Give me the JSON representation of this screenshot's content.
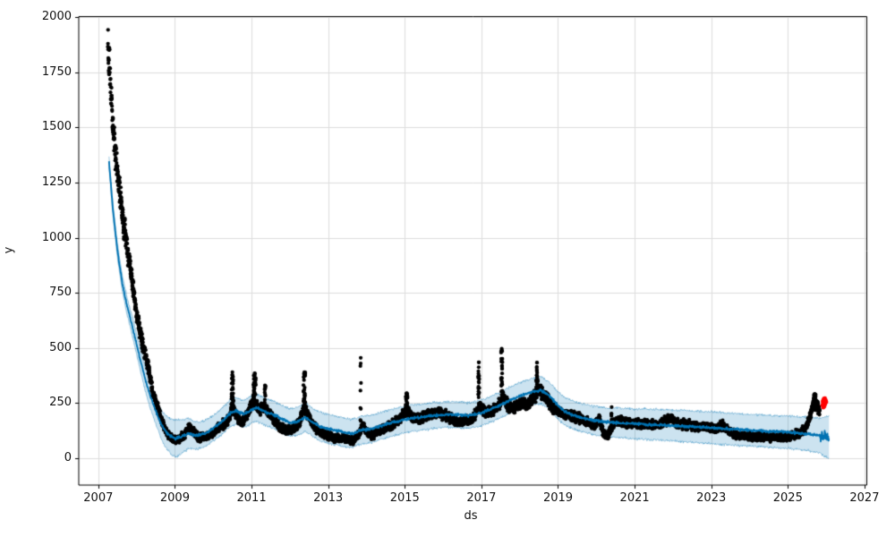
{
  "chart_data": {
    "type": "scatter",
    "title": "",
    "xlabel": "ds",
    "ylabel": "y",
    "xlim": [
      2006.49,
      2027.06
    ],
    "ylim": [
      -122,
      2003
    ],
    "xticks": [
      2007,
      2009,
      2011,
      2013,
      2015,
      2017,
      2019,
      2021,
      2023,
      2025,
      2027
    ],
    "yticks": [
      0,
      250,
      500,
      750,
      1000,
      1250,
      1500,
      1750,
      2000
    ],
    "grid": true,
    "legend": null,
    "colors": {
      "points": "#000000",
      "anomaly": "#ff0000",
      "line": "#0072B2",
      "band_fill": "rgba(0,114,178,0.2)",
      "band_edge": "rgba(0,114,178,0.35)",
      "grid": "#dddddd",
      "frame": "#000000",
      "tick_text": "#111111",
      "background": "#ffffff"
    },
    "series": [
      {
        "name": "observations",
        "style": "scatter",
        "color": "#000000"
      },
      {
        "name": "forecast yhat",
        "style": "line",
        "color": "#0072B2"
      },
      {
        "name": "uncertainty interval",
        "style": "band",
        "color": "rgba(0,114,178,0.2)"
      },
      {
        "name": "anomalies",
        "style": "scatter",
        "color": "#ff0000"
      }
    ],
    "obs_start": 2007.25,
    "history_end": 2025.83,
    "line_start": 2007.28,
    "forecast_end": 2026.08,
    "trend_anchors": [
      [
        2007.28,
        1345
      ],
      [
        2007.38,
        1130
      ],
      [
        2007.5,
        940
      ],
      [
        2007.62,
        800
      ],
      [
        2007.75,
        690
      ],
      [
        2007.9,
        590
      ],
      [
        2008.05,
        480
      ],
      [
        2008.2,
        375
      ],
      [
        2008.35,
        285
      ],
      [
        2008.5,
        215
      ],
      [
        2008.65,
        150
      ],
      [
        2008.8,
        112
      ],
      [
        2009.0,
        88
      ],
      [
        2009.15,
        95
      ],
      [
        2009.35,
        112
      ],
      [
        2009.55,
        103
      ],
      [
        2009.75,
        108
      ],
      [
        2010.0,
        135
      ],
      [
        2010.2,
        162
      ],
      [
        2010.45,
        205
      ],
      [
        2010.6,
        215
      ],
      [
        2010.8,
        200
      ],
      [
        2011.0,
        220
      ],
      [
        2011.15,
        228
      ],
      [
        2011.4,
        207
      ],
      [
        2011.6,
        196
      ],
      [
        2011.8,
        176
      ],
      [
        2012.0,
        162
      ],
      [
        2012.2,
        166
      ],
      [
        2012.4,
        186
      ],
      [
        2012.6,
        162
      ],
      [
        2012.8,
        142
      ],
      [
        2013.0,
        133
      ],
      [
        2013.2,
        127
      ],
      [
        2013.45,
        116
      ],
      [
        2013.65,
        112
      ],
      [
        2013.85,
        127
      ],
      [
        2014.05,
        130
      ],
      [
        2014.3,
        142
      ],
      [
        2014.6,
        158
      ],
      [
        2014.9,
        170
      ],
      [
        2015.15,
        181
      ],
      [
        2015.45,
        186
      ],
      [
        2015.75,
        193
      ],
      [
        2016.05,
        197
      ],
      [
        2016.35,
        198
      ],
      [
        2016.65,
        193
      ],
      [
        2016.9,
        200
      ],
      [
        2017.1,
        212
      ],
      [
        2017.35,
        230
      ],
      [
        2017.6,
        250
      ],
      [
        2017.85,
        272
      ],
      [
        2018.1,
        288
      ],
      [
        2018.35,
        302
      ],
      [
        2018.55,
        308
      ],
      [
        2018.75,
        288
      ],
      [
        2018.95,
        248
      ],
      [
        2019.15,
        215
      ],
      [
        2019.35,
        198
      ],
      [
        2019.6,
        185
      ],
      [
        2019.9,
        172
      ],
      [
        2020.2,
        165
      ],
      [
        2020.5,
        162
      ],
      [
        2020.8,
        158
      ],
      [
        2021.1,
        155
      ],
      [
        2021.5,
        152
      ],
      [
        2022.0,
        148
      ],
      [
        2022.5,
        143
      ],
      [
        2023.0,
        138
      ],
      [
        2023.5,
        132
      ],
      [
        2024.0,
        127
      ],
      [
        2024.5,
        122
      ],
      [
        2025.0,
        118
      ],
      [
        2025.4,
        112
      ],
      [
        2025.83,
        104
      ],
      [
        2025.9,
        98
      ],
      [
        2026.08,
        95
      ]
    ],
    "band_half_anchors": [
      [
        2007.28,
        25
      ],
      [
        2007.6,
        35
      ],
      [
        2008.0,
        48
      ],
      [
        2008.5,
        60
      ],
      [
        2009.0,
        85
      ],
      [
        2009.5,
        62
      ],
      [
        2010.0,
        58
      ],
      [
        2011.0,
        62
      ],
      [
        2012.0,
        62
      ],
      [
        2013.0,
        66
      ],
      [
        2014.0,
        62
      ],
      [
        2015.0,
        60
      ],
      [
        2016.0,
        58
      ],
      [
        2017.0,
        58
      ],
      [
        2018.0,
        60
      ],
      [
        2019.0,
        62
      ],
      [
        2020.0,
        65
      ],
      [
        2021.0,
        68
      ],
      [
        2022.0,
        70
      ],
      [
        2023.0,
        72
      ],
      [
        2024.0,
        72
      ],
      [
        2025.0,
        73
      ],
      [
        2025.83,
        78
      ],
      [
        2026.08,
        97
      ]
    ],
    "obs_anchors": [
      [
        2007.25,
        1895
      ],
      [
        2007.29,
        1780
      ],
      [
        2007.33,
        1660
      ],
      [
        2007.37,
        1545
      ],
      [
        2007.41,
        1455
      ],
      [
        2007.45,
        1370
      ],
      [
        2007.5,
        1300
      ],
      [
        2007.55,
        1225
      ],
      [
        2007.6,
        1140
      ],
      [
        2007.66,
        1060
      ],
      [
        2007.72,
        990
      ],
      [
        2007.78,
        930
      ],
      [
        2007.85,
        845
      ],
      [
        2007.92,
        760
      ],
      [
        2008.0,
        655
      ],
      [
        2008.08,
        585
      ],
      [
        2008.16,
        510
      ],
      [
        2008.24,
        460
      ],
      [
        2008.32,
        405
      ],
      [
        2008.42,
        300
      ],
      [
        2008.52,
        250
      ],
      [
        2008.62,
        185
      ],
      [
        2008.72,
        140
      ],
      [
        2008.82,
        110
      ],
      [
        2008.92,
        92
      ],
      [
        2009.02,
        80
      ],
      [
        2009.12,
        88
      ],
      [
        2009.25,
        105
      ],
      [
        2009.38,
        148
      ],
      [
        2009.5,
        112
      ],
      [
        2009.65,
        95
      ],
      [
        2009.8,
        98
      ],
      [
        2009.95,
        110
      ],
      [
        2010.1,
        135
      ],
      [
        2010.25,
        152
      ],
      [
        2010.4,
        175
      ],
      [
        2010.5,
        235
      ],
      [
        2010.62,
        185
      ],
      [
        2010.75,
        160
      ],
      [
        2010.9,
        205
      ],
      [
        2011.05,
        265
      ],
      [
        2011.2,
        215
      ],
      [
        2011.35,
        235
      ],
      [
        2011.5,
        195
      ],
      [
        2011.65,
        158
      ],
      [
        2011.8,
        135
      ],
      [
        2011.95,
        125
      ],
      [
        2012.1,
        135
      ],
      [
        2012.25,
        165
      ],
      [
        2012.38,
        235
      ],
      [
        2012.5,
        185
      ],
      [
        2012.62,
        148
      ],
      [
        2012.75,
        122
      ],
      [
        2012.9,
        110
      ],
      [
        2013.05,
        100
      ],
      [
        2013.2,
        88
      ],
      [
        2013.35,
        92
      ],
      [
        2013.5,
        85
      ],
      [
        2013.65,
        82
      ],
      [
        2013.8,
        105
      ],
      [
        2013.9,
        150
      ],
      [
        2014.0,
        118
      ],
      [
        2014.15,
        105
      ],
      [
        2014.3,
        122
      ],
      [
        2014.5,
        138
      ],
      [
        2014.7,
        155
      ],
      [
        2014.9,
        185
      ],
      [
        2015.05,
        225
      ],
      [
        2015.2,
        185
      ],
      [
        2015.4,
        178
      ],
      [
        2015.6,
        198
      ],
      [
        2015.8,
        208
      ],
      [
        2016.0,
        198
      ],
      [
        2016.2,
        178
      ],
      [
        2016.4,
        164
      ],
      [
        2016.6,
        170
      ],
      [
        2016.8,
        186
      ],
      [
        2016.95,
        240
      ],
      [
        2017.1,
        208
      ],
      [
        2017.3,
        218
      ],
      [
        2017.45,
        238
      ],
      [
        2017.58,
        280
      ],
      [
        2017.72,
        228
      ],
      [
        2017.88,
        232
      ],
      [
        2018.05,
        248
      ],
      [
        2018.2,
        242
      ],
      [
        2018.38,
        282
      ],
      [
        2018.52,
        312
      ],
      [
        2018.68,
        278
      ],
      [
        2018.85,
        232
      ],
      [
        2019.0,
        212
      ],
      [
        2019.2,
        198
      ],
      [
        2019.4,
        188
      ],
      [
        2019.6,
        178
      ],
      [
        2019.8,
        162
      ],
      [
        2019.95,
        150
      ],
      [
        2020.08,
        175
      ],
      [
        2020.18,
        118
      ],
      [
        2020.3,
        98
      ],
      [
        2020.45,
        158
      ],
      [
        2020.62,
        168
      ],
      [
        2020.8,
        160
      ],
      [
        2021.0,
        158
      ],
      [
        2021.3,
        153
      ],
      [
        2021.6,
        150
      ],
      [
        2021.8,
        168
      ],
      [
        2021.95,
        182
      ],
      [
        2022.1,
        158
      ],
      [
        2022.35,
        150
      ],
      [
        2022.6,
        145
      ],
      [
        2022.85,
        140
      ],
      [
        2023.05,
        136
      ],
      [
        2023.3,
        148
      ],
      [
        2023.5,
        118
      ],
      [
        2023.7,
        105
      ],
      [
        2023.95,
        100
      ],
      [
        2024.25,
        97
      ],
      [
        2024.55,
        94
      ],
      [
        2024.85,
        95
      ],
      [
        2025.1,
        100
      ],
      [
        2025.3,
        112
      ],
      [
        2025.45,
        132
      ],
      [
        2025.55,
        175
      ],
      [
        2025.65,
        235
      ],
      [
        2025.73,
        252
      ],
      [
        2025.79,
        228
      ],
      [
        2025.83,
        210
      ]
    ],
    "spikes": [
      [
        2010.5,
        390,
        26,
        0.05
      ],
      [
        2011.08,
        385,
        30,
        0.06
      ],
      [
        2011.35,
        330,
        12,
        0.03
      ],
      [
        2012.38,
        390,
        26,
        0.05
      ],
      [
        2013.85,
        455,
        8,
        0.02
      ],
      [
        2015.05,
        295,
        16,
        0.05
      ],
      [
        2016.93,
        435,
        18,
        0.03
      ],
      [
        2017.53,
        497,
        26,
        0.04
      ],
      [
        2018.45,
        434,
        20,
        0.05
      ],
      [
        2020.4,
        232,
        8,
        0.02
      ],
      [
        2025.7,
        292,
        18,
        0.05
      ]
    ],
    "anomaly_points": [
      [
        2025.9,
        240
      ],
      [
        2025.91,
        255
      ],
      [
        2025.92,
        262
      ],
      [
        2025.925,
        230
      ],
      [
        2025.93,
        248
      ],
      [
        2025.94,
        270
      ],
      [
        2025.95,
        235
      ],
      [
        2025.955,
        252
      ],
      [
        2025.96,
        266
      ],
      [
        2025.965,
        272
      ],
      [
        2025.97,
        244
      ],
      [
        2025.975,
        258
      ],
      [
        2025.98,
        250
      ],
      [
        2025.99,
        262
      ],
      [
        2026.0,
        255
      ]
    ],
    "obs": {
      "day_step": 0.00274,
      "noise_rel": 0.05,
      "noise_abs": 15,
      "min_value": 48,
      "dot_radius": 2.1
    },
    "line": {
      "width": 1.8,
      "wiggle_amp": 7,
      "step": 0.008,
      "tail_amp": 26
    },
    "band": {
      "step": 0.012,
      "edge_wiggle": 7
    }
  }
}
